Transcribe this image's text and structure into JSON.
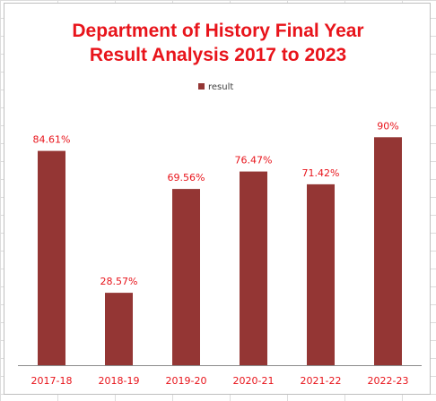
{
  "chart_data": {
    "type": "bar",
    "title_lines": [
      "Department of History Final Year",
      "Result Analysis 2017 to 2023"
    ],
    "categories": [
      "2017-18",
      "2018-19",
      "2019-20",
      "2020-21",
      "2021-22",
      "2022-23"
    ],
    "series": [
      {
        "name": "result",
        "values": [
          84.61,
          28.57,
          69.56,
          76.47,
          71.42,
          90
        ],
        "labels": [
          "84.61%",
          "28.57%",
          "69.56%",
          "76.47%",
          "71.42%",
          "90%"
        ]
      }
    ],
    "ylim": [
      0,
      100
    ],
    "grid": false,
    "legend_position": "top",
    "colors": {
      "bar": "#943634",
      "title": "#e8141b",
      "labels": "#e8141b"
    }
  }
}
